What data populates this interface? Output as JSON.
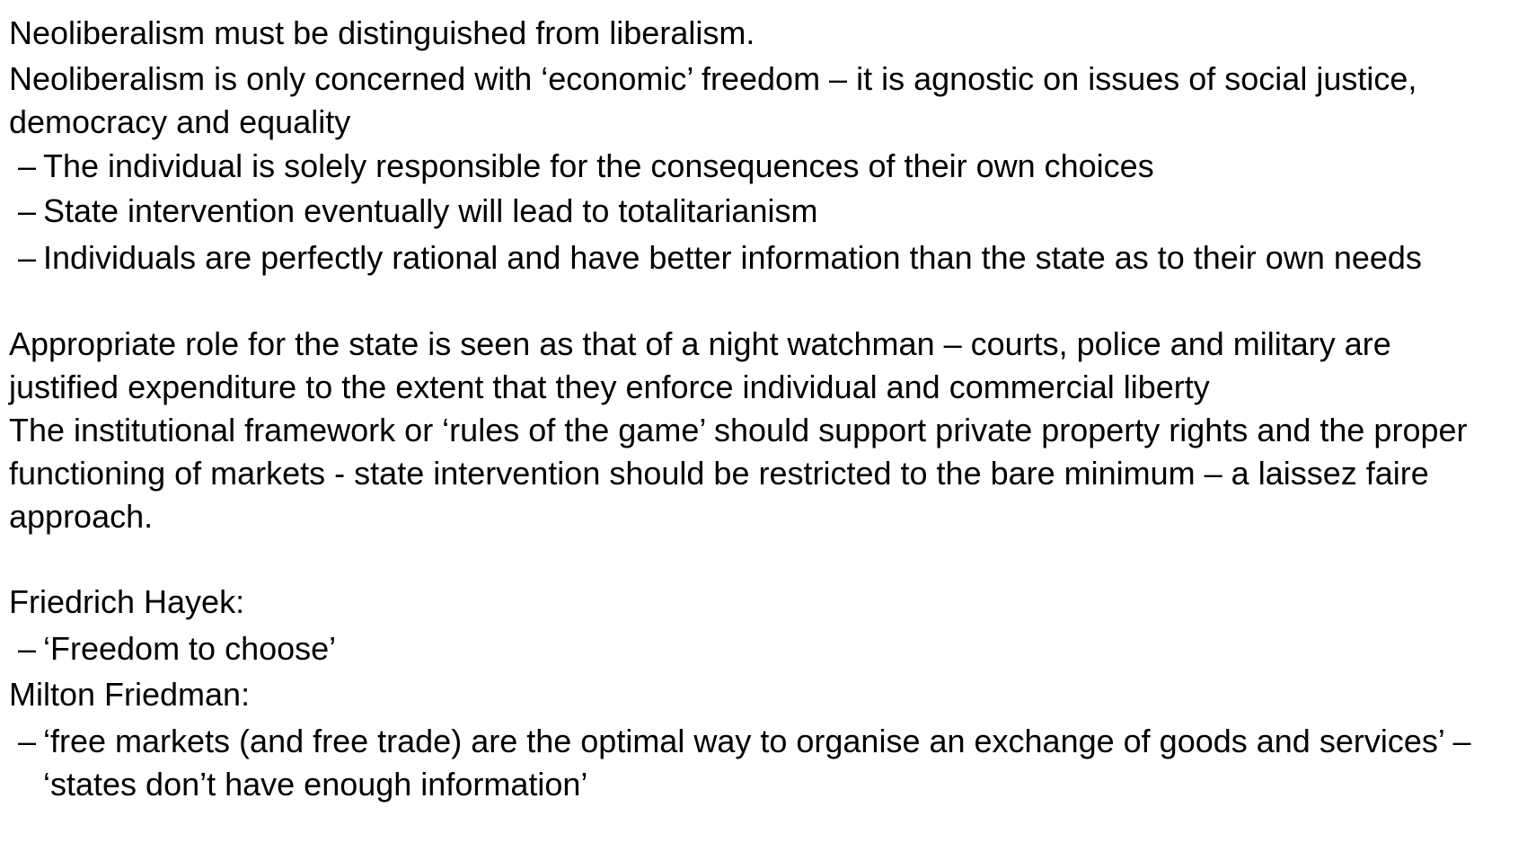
{
  "content": {
    "p1": "Neoliberalism must be distinguished from liberalism.",
    "p2": "Neoliberalism is only concerned with ‘economic’ freedom – it is agnostic on issues of social justice, democracy and equality",
    "sub1": "The individual is solely responsible for the consequences of their own choices",
    "sub2": "State intervention eventually will lead to totalitarianism",
    "sub3": "Individuals are perfectly rational and have better information than the state as to their own needs",
    "p3": "Appropriate role for the state is seen as that of a night watchman – courts, police and military are justified expenditure to the extent that they enforce individual and commercial liberty",
    "p4": "The institutional framework or ‘rules of the game’ should support private property rights and the proper functioning of markets  - state intervention should be restricted to the bare minimum – a laissez faire approach.",
    "p5": "Friedrich Hayek:",
    "sub4": "‘Freedom to choose’",
    "p6": "Milton Friedman:",
    "sub5": "‘free markets (and free trade) are the optimal way to organise an exchange of goods and services’ – ‘states don’t have enough information’",
    "dash": "–"
  }
}
